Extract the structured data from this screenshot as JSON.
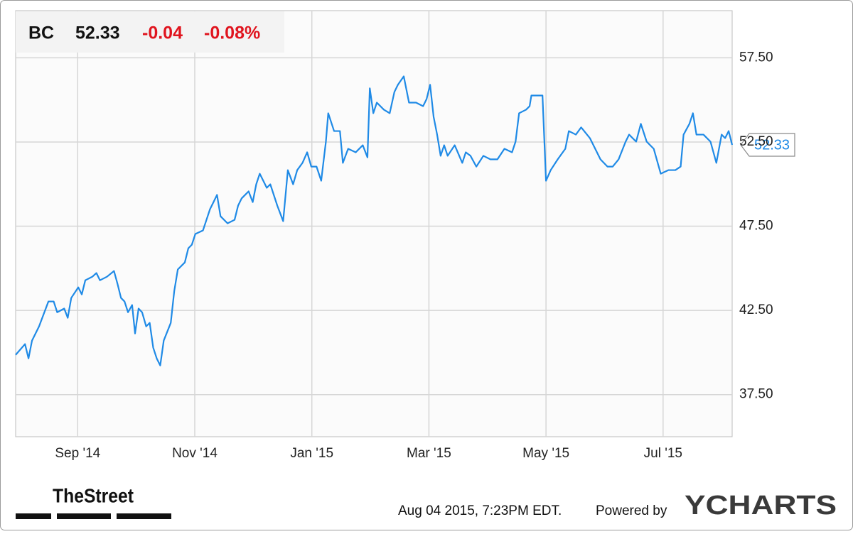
{
  "header": {
    "symbol": "BC",
    "price": "52.33",
    "change": "-0.04",
    "change_percent": "-0.08%"
  },
  "chart_data": {
    "type": "line",
    "color": "#1f8ae6",
    "grid": true,
    "xlim": [
      6.94,
      19.18
    ],
    "xticks": [
      {
        "value": 8,
        "label": "Sep '14"
      },
      {
        "value": 10,
        "label": "Nov '14"
      },
      {
        "value": 12,
        "label": "Jan '15"
      },
      {
        "value": 14,
        "label": "Mar '15"
      },
      {
        "value": 16,
        "label": "May '15"
      },
      {
        "value": 18,
        "label": "Jul '15"
      }
    ],
    "ylim": [
      35.0,
      60.3
    ],
    "yticks": [
      {
        "value": 37.5,
        "label": "37.50"
      },
      {
        "value": 42.5,
        "label": "42.50"
      },
      {
        "value": 47.5,
        "label": "47.50"
      },
      {
        "value": 52.5,
        "label": "52.50"
      },
      {
        "value": 57.5,
        "label": "57.50"
      }
    ],
    "x": [
      6.94,
      7.1,
      7.16,
      7.22,
      7.34,
      7.5,
      7.59,
      7.65,
      7.77,
      7.83,
      7.89,
      8.01,
      8.07,
      8.13,
      8.25,
      8.32,
      8.38,
      8.5,
      8.62,
      8.68,
      8.74,
      8.8,
      8.86,
      8.93,
      8.98,
      9.04,
      9.1,
      9.17,
      9.23,
      9.29,
      9.35,
      9.41,
      9.47,
      9.59,
      9.65,
      9.71,
      9.83,
      9.89,
      9.95,
      10.01,
      10.14,
      10.2,
      10.26,
      10.32,
      10.38,
      10.44,
      10.56,
      10.68,
      10.74,
      10.8,
      10.86,
      10.92,
      10.99,
      11.05,
      11.11,
      11.17,
      11.23,
      11.29,
      11.41,
      11.51,
      11.59,
      11.68,
      11.75,
      11.84,
      11.92,
      11.99,
      12.08,
      12.16,
      12.24,
      12.28,
      12.38,
      12.48,
      12.53,
      12.62,
      12.75,
      12.87,
      12.95,
      12.99,
      13.05,
      13.11,
      13.23,
      13.33,
      13.41,
      13.47,
      13.57,
      13.66,
      13.78,
      13.9,
      13.96,
      14.02,
      14.08,
      14.14,
      14.2,
      14.26,
      14.32,
      14.44,
      14.57,
      14.63,
      14.71,
      14.81,
      14.93,
      15.05,
      15.17,
      15.29,
      15.42,
      15.48,
      15.54,
      15.66,
      15.72,
      15.75,
      15.84,
      15.94,
      16.0,
      16.08,
      16.2,
      16.33,
      16.39,
      16.51,
      16.6,
      16.75,
      16.93,
      17.05,
      17.14,
      17.24,
      17.36,
      17.42,
      17.54,
      17.62,
      17.72,
      17.84,
      17.96,
      18.09,
      18.21,
      18.3,
      18.35,
      18.45,
      18.51,
      18.57,
      18.69,
      18.81,
      18.91,
      19.0,
      19.06,
      19.12,
      19.18
    ],
    "values": [
      39.86,
      40.5,
      39.65,
      40.71,
      41.55,
      43.03,
      43.03,
      42.39,
      42.61,
      42.06,
      43.24,
      43.87,
      43.45,
      44.29,
      44.5,
      44.72,
      44.29,
      44.5,
      44.84,
      44.08,
      43.24,
      43.03,
      42.39,
      42.82,
      41.13,
      42.61,
      42.39,
      41.55,
      41.76,
      40.29,
      39.65,
      39.23,
      40.71,
      41.76,
      43.66,
      44.93,
      45.35,
      46.19,
      46.4,
      47.04,
      47.25,
      47.88,
      48.51,
      48.93,
      49.36,
      48.09,
      47.67,
      47.88,
      48.72,
      49.15,
      49.36,
      49.57,
      48.93,
      49.99,
      50.62,
      50.2,
      49.78,
      49.99,
      48.72,
      47.8,
      50.83,
      49.99,
      50.83,
      51.26,
      51.89,
      51.04,
      51.04,
      50.2,
      52.52,
      54.21,
      53.15,
      53.15,
      51.26,
      52.1,
      51.89,
      52.31,
      51.59,
      55.69,
      54.21,
      54.84,
      54.42,
      54.21,
      55.47,
      55.9,
      56.4,
      54.84,
      54.84,
      54.63,
      55.05,
      55.9,
      54.0,
      52.94,
      51.68,
      52.31,
      51.68,
      52.31,
      51.26,
      51.89,
      51.68,
      51.04,
      51.68,
      51.47,
      51.47,
      52.1,
      51.89,
      52.52,
      54.21,
      54.42,
      54.63,
      55.26,
      55.26,
      55.26,
      50.2,
      50.83,
      51.47,
      52.1,
      53.15,
      52.94,
      53.37,
      52.73,
      51.47,
      51.04,
      51.04,
      51.47,
      52.52,
      52.94,
      52.52,
      53.58,
      52.52,
      52.1,
      50.62,
      50.83,
      50.83,
      51.04,
      52.94,
      53.58,
      54.21,
      52.94,
      52.94,
      52.52,
      51.26,
      52.94,
      52.73,
      53.15,
      52.33
    ]
  },
  "footer": {
    "brand": "TheStreet",
    "timestamp": "Aug 04 2015, 7:23PM EDT.",
    "powered_by": "Powered by",
    "provider": "YCHARTS"
  }
}
